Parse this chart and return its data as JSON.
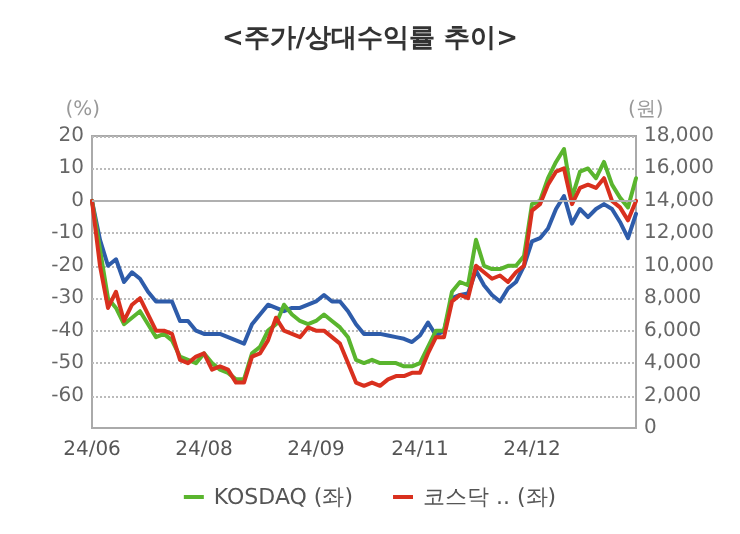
{
  "chart_data": {
    "type": "line",
    "title": "<주가/상대수익률 추이>",
    "ylabel": "(%)",
    "y2label": "(원)",
    "categories": [
      "24/06",
      null,
      null,
      null,
      null,
      null,
      null,
      null,
      null,
      null,
      null,
      null,
      null,
      null,
      "24/08",
      null,
      null,
      null,
      null,
      null,
      null,
      null,
      null,
      null,
      null,
      null,
      null,
      null,
      "24/09",
      null,
      null,
      null,
      null,
      null,
      null,
      null,
      null,
      null,
      null,
      null,
      null,
      "24/11",
      null,
      null,
      null,
      null,
      null,
      null,
      null,
      null,
      null,
      null,
      null,
      null,
      null,
      "24/12",
      null,
      null,
      null,
      null,
      null,
      null,
      null,
      null,
      null,
      null,
      null,
      null,
      null
    ],
    "series": [
      {
        "color": "#2e5caa",
        "axis": "y2",
        "values": [
          14000,
          11600,
          10000,
          10400,
          9000,
          9600,
          9200,
          8400,
          7800,
          7800,
          7800,
          6600,
          6600,
          6000,
          5800,
          5800,
          5800,
          5600,
          5400,
          5200,
          6400,
          7000,
          7600,
          7400,
          7200,
          7400,
          7400,
          7600,
          7800,
          8200,
          7800,
          7800,
          7200,
          6400,
          5800,
          5800,
          5800,
          5700,
          5600,
          5500,
          5300,
          5700,
          6500,
          5700,
          6000,
          8000,
          8200,
          8300,
          9700,
          8800,
          8200,
          7800,
          8600,
          9000,
          10000,
          11500,
          11700,
          12300,
          13500,
          14300,
          12600,
          13500,
          13000,
          13500,
          13800,
          13500,
          12700,
          11700,
          13200
        ]
      },
      {
        "name": "KOSDAQ (좌)",
        "color": "#5ab52e",
        "values": [
          0,
          -15,
          -30,
          -33,
          -38,
          -36,
          -34,
          -38,
          -42,
          -41,
          -43,
          -48,
          -49,
          -50,
          -47,
          -50,
          -52,
          -53,
          -55,
          -55,
          -47,
          -45,
          -40,
          -38,
          -32,
          -35,
          -37,
          -38,
          -37,
          -35,
          -37,
          -39,
          -42,
          -49,
          -50,
          -49,
          -50,
          -50,
          -50,
          -51,
          -51,
          -50,
          -45,
          -40,
          -40,
          -28,
          -25,
          -26,
          -12,
          -20,
          -21,
          -21,
          -20,
          -20,
          -17,
          -1,
          0,
          7,
          12,
          16,
          1,
          9,
          10,
          7,
          12,
          5,
          1,
          -2,
          7
        ]
      },
      {
        "name": "코스닥 .. (좌)",
        "color": "#d9301e",
        "values": [
          0,
          -20,
          -33,
          -28,
          -37,
          -32,
          -30,
          -35,
          -40,
          -40,
          -41,
          -49,
          -50,
          -48,
          -47,
          -52,
          -51,
          -52,
          -56,
          -56,
          -48,
          -47,
          -43,
          -36,
          -40,
          -41,
          -42,
          -39,
          -40,
          -40,
          -42,
          -44,
          -50,
          -56,
          -57,
          -56,
          -57,
          -55,
          -54,
          -54,
          -53,
          -53,
          -47,
          -42,
          -42,
          -31,
          -29,
          -30,
          -20,
          -22,
          -24,
          -23,
          -25,
          -22,
          -20,
          -3,
          -1,
          5,
          9,
          10,
          -1,
          4,
          5,
          4,
          7,
          0,
          -2,
          -6,
          0
        ]
      }
    ],
    "ylim": [
      -70,
      20
    ],
    "yticks": [
      20,
      10,
      0,
      -10,
      -20,
      -30,
      -40,
      -50,
      -60
    ],
    "y2lim": [
      0,
      18000
    ],
    "y2ticks": [
      {
        "value": 18000,
        "label": "18,000"
      },
      {
        "value": 16000,
        "label": "16,000"
      },
      {
        "value": 14000,
        "label": "14,000"
      },
      {
        "value": 12000,
        "label": "12,000"
      },
      {
        "value": 10000,
        "label": "10,000"
      },
      {
        "value": 8000,
        "label": "8,000"
      },
      {
        "value": 6000,
        "label": "6,000"
      },
      {
        "value": 4000,
        "label": "4,000"
      },
      {
        "value": 2000,
        "label": "2,000"
      },
      0
    ],
    "ref_lines": [
      {
        "axis": "y",
        "value": 0,
        "label": null,
        "color": "#b0b0b0"
      }
    ],
    "grid": "y",
    "legend": "bottom",
    "marker": "none",
    "line_style": "solid"
  }
}
